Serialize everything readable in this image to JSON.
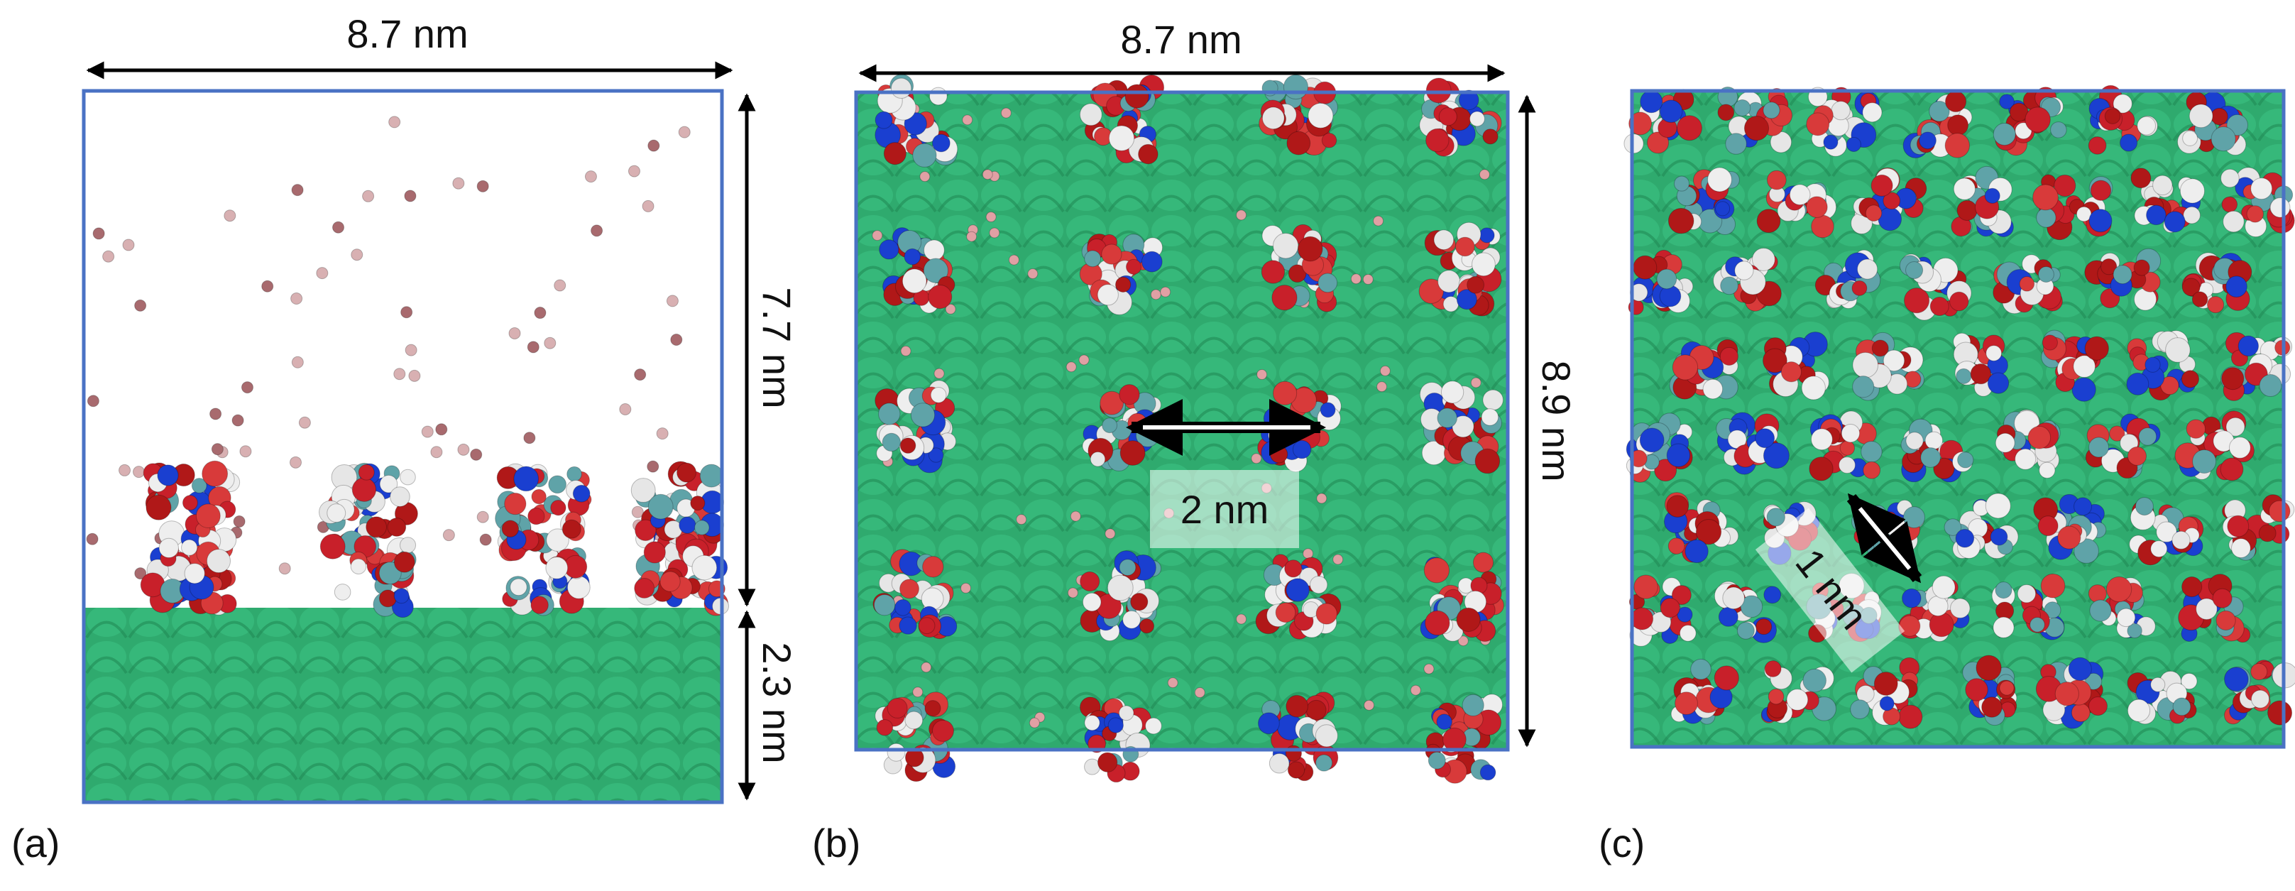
{
  "panels": [
    {
      "label": "(a)",
      "width": "8.7 nm",
      "height_top": "7.7 nm",
      "height_bottom": "2.3 nm"
    },
    {
      "label": "(b)",
      "width": "8.7 nm",
      "height": "8.9 nm",
      "spacing": "2 nm"
    },
    {
      "label": "(c)",
      "spacing": "1 nm"
    }
  ]
}
